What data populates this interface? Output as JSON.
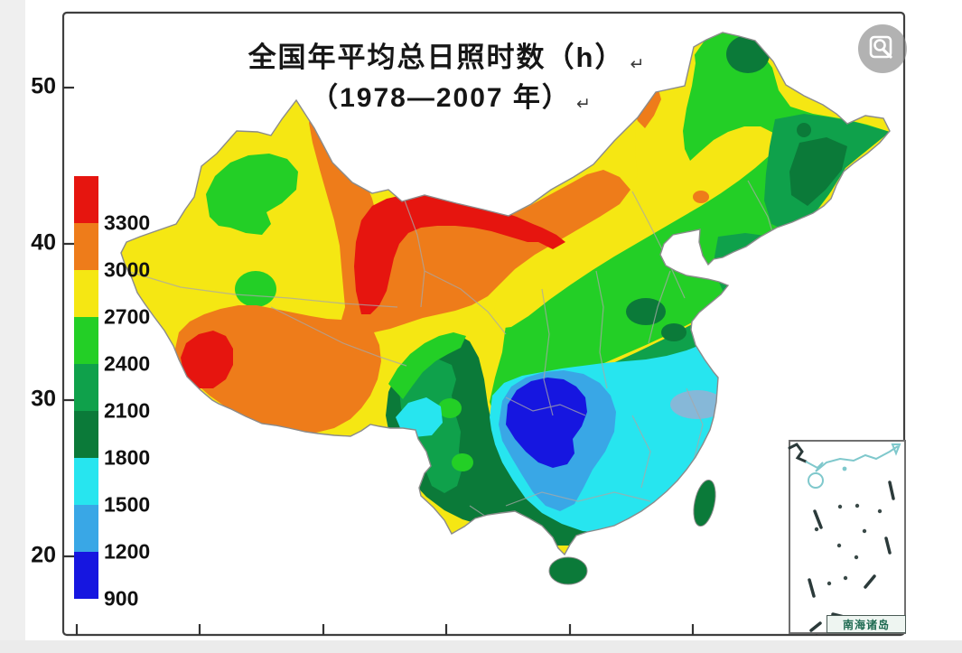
{
  "title": {
    "line1": "全国年平均总日照时数（h）",
    "line2": "（1978—2007 年）",
    "return_mark": "↵"
  },
  "axes": {
    "y_tick_labels": [
      "50",
      "40",
      "30",
      "20"
    ],
    "x_tick_count": 7
  },
  "legend": {
    "unit": "h",
    "values": [
      "3300",
      "3000",
      "2700",
      "2400",
      "2100",
      "1800",
      "1500",
      "1200",
      "900"
    ],
    "colors": [
      "#e6150f",
      "#ee7c1a",
      "#f5e713",
      "#23cf26",
      "#0fa14b",
      "#0b7a39",
      "#27e5ef",
      "#39a7e6",
      "#1616e0"
    ]
  },
  "map": {
    "subject": "China annual mean total sunshine hours 1978-2007",
    "inset_label": "南海诸岛"
  },
  "icons": {
    "image_search": "magnifier-in-frame"
  }
}
